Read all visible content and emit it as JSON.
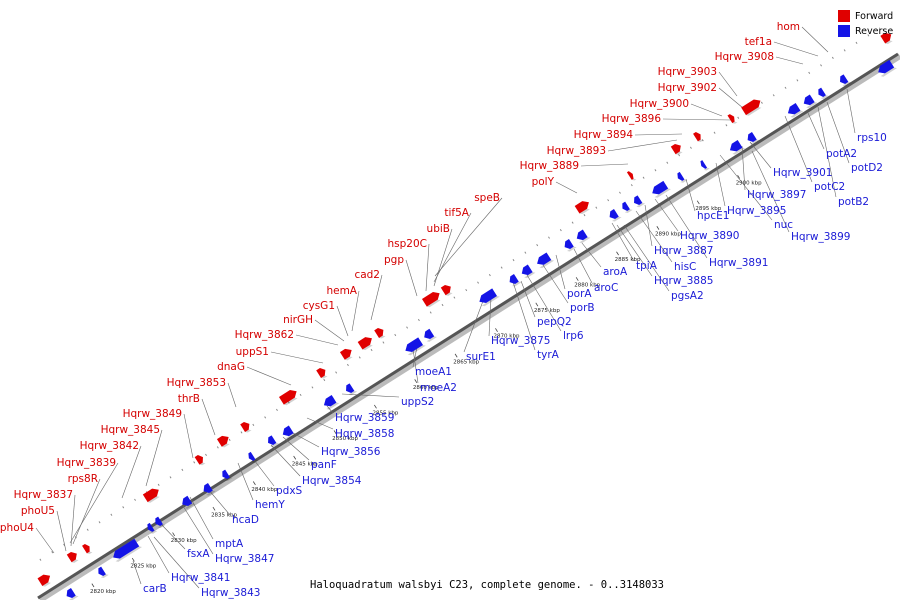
{
  "caption": "Haloquadratum walsbyi C23, complete genome. - 0..3148033",
  "legend": [
    {
      "label": "Forward",
      "color": "#e00000"
    },
    {
      "label": "Reverse",
      "color": "#1414e6"
    }
  ],
  "colors": {
    "forward": "#e00000",
    "reverse": "#1414e6",
    "axis": "#888888",
    "forward_text": "#d40000",
    "reverse_text": "#1a1ad6"
  },
  "axis_ticks": [
    "2820 kbp",
    "2825 kbp",
    "2830 kbp",
    "2835 kbp",
    "2840 kbp",
    "2845 kbp",
    "2850 kbp",
    "2855 kbp",
    "2860 kbp",
    "2865 kbp",
    "2870 kbp",
    "2875 kbp",
    "2880 kbp",
    "2885 kbp",
    "2890 kbp",
    "2895 kbp",
    "2900 kbp"
  ],
  "forward_labels": [
    "hom",
    "tef1a",
    "Hqrw_3908",
    "Hqrw_3903",
    "Hqrw_3902",
    "Hqrw_3900",
    "Hqrw_3896",
    "Hqrw_3894",
    "Hqrw_3893",
    "Hqrw_3889",
    "polY",
    "speB",
    "tif5A",
    "ubiB",
    "hsp20C",
    "pgp",
    "cad2",
    "hemA",
    "cysG1",
    "nirGH",
    "Hqrw_3862",
    "uppS1",
    "dnaG",
    "Hqrw_3853",
    "thrB",
    "Hqrw_3849",
    "Hqrw_3845",
    "Hqrw_3842",
    "Hqrw_3839",
    "rps8R",
    "Hqrw_3837",
    "phoU5",
    "phoU4"
  ],
  "reverse_labels": [
    "carB",
    "Hqrw_3843",
    "Hqrw_3841",
    "fsxA",
    "Hqrw_3847",
    "mptA",
    "hcaD",
    "hemY",
    "pdxS",
    "Hqrw_3854",
    "panF",
    "Hqrw_3856",
    "Hqrw_3858",
    "Hqrw_3859",
    "uppS2",
    "moeA2",
    "moeA1",
    "surE1",
    "tyrA",
    "Hqrw_3875",
    "lrp6",
    "pepQ2",
    "porB",
    "porA",
    "aroC",
    "aroA",
    "pgsA2",
    "Hqrw_3885",
    "tpiA",
    "hisC",
    "Hqrw_3887",
    "Hqrw_3891",
    "Hqrw_3890",
    "hpcE1",
    "nuc",
    "Hqrw_3895",
    "Hqrw_3899",
    "Hqrw_3897",
    "Hqrw_3901",
    "potC2",
    "potB2",
    "potA2",
    "potD2",
    "rps10"
  ]
}
